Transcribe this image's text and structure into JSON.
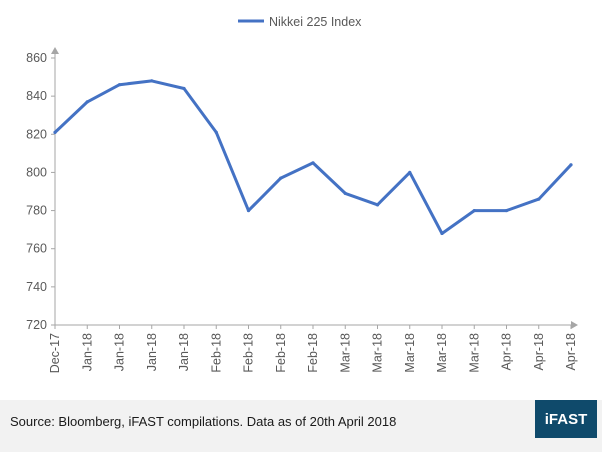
{
  "chart_data": {
    "type": "line",
    "title": "",
    "xlabel": "",
    "ylabel": "",
    "ylim": [
      720,
      860
    ],
    "yticks": [
      720,
      740,
      760,
      780,
      800,
      820,
      840,
      860
    ],
    "grid": false,
    "legend_position": "top-center",
    "categories": [
      "Dec-17",
      "Jan-18",
      "Jan-18",
      "Jan-18",
      "Jan-18",
      "Feb-18",
      "Feb-18",
      "Feb-18",
      "Feb-18",
      "Mar-18",
      "Mar-18",
      "Mar-18",
      "Mar-18",
      "Mar-18",
      "Apr-18",
      "Apr-18",
      "Apr-18"
    ],
    "series": [
      {
        "name": "Nikkei 225 Index",
        "color": "#4472c4",
        "values": [
          821,
          837,
          846,
          848,
          844,
          821,
          780,
          797,
          805,
          789,
          783,
          800,
          768,
          780,
          780,
          786,
          804
        ]
      }
    ]
  },
  "footer": {
    "source": "Source: Bloomberg, iFAST compilations. Data as of 20th April 2018",
    "brand": "iFAST",
    "background": "#f2f2f2",
    "brand_color": "#0f4a6b"
  }
}
